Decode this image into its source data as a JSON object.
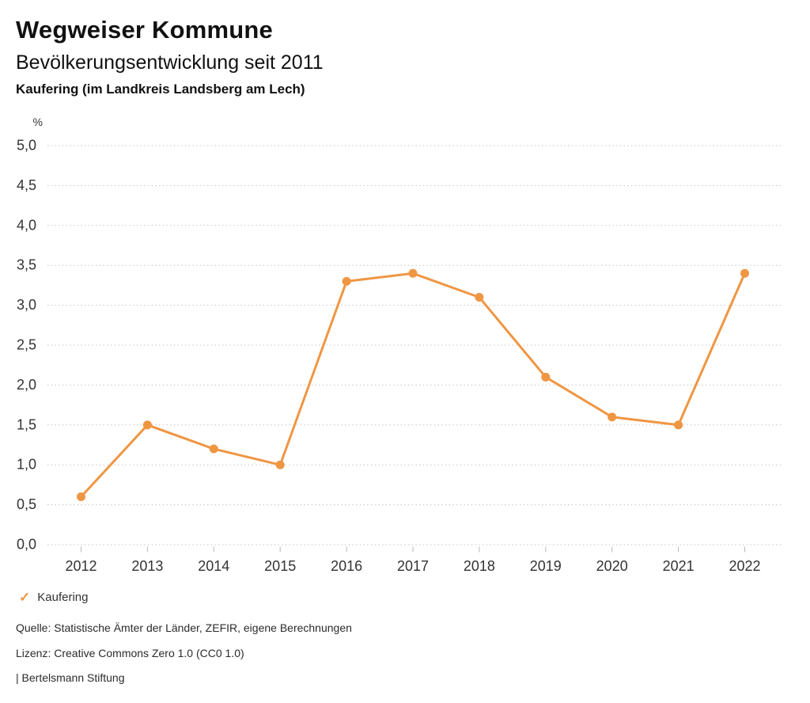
{
  "header": {
    "app_title": "Wegweiser Kommune"
  },
  "chart_data": {
    "type": "line",
    "title": "Bevölkerungsentwicklung seit 2011",
    "subtitle": "Kaufering (im Landkreis Landsberg am Lech)",
    "unit": "%",
    "categories": [
      "2012",
      "2013",
      "2014",
      "2015",
      "2016",
      "2017",
      "2018",
      "2019",
      "2020",
      "2021",
      "2022"
    ],
    "series": [
      {
        "name": "Kaufering",
        "values": [
          0.6,
          1.5,
          1.2,
          1.0,
          3.3,
          3.4,
          3.1,
          2.1,
          1.6,
          1.5,
          3.4
        ]
      }
    ],
    "ylim": [
      0,
      5
    ],
    "y_ticks": [
      0,
      0.5,
      1,
      1.5,
      2,
      2.5,
      3,
      3.5,
      4,
      4.5,
      5
    ],
    "grid": "horizontal-dotted",
    "legend": {
      "position": "bottom-left",
      "items": [
        {
          "label": "Kaufering",
          "checked": true,
          "icon": "check"
        }
      ]
    },
    "colors": {
      "line": "#EF9643",
      "grid": "#C3C3C3",
      "tick": "#B9B9B9",
      "text": "#333333"
    }
  },
  "footer": {
    "source": "Quelle: Statistische Ämter der Länder, ZEFIR, eigene Berechnungen",
    "license": "Lizenz: Creative Commons Zero 1.0 (CC0 1.0)",
    "attribution": "| Bertelsmann Stiftung"
  }
}
